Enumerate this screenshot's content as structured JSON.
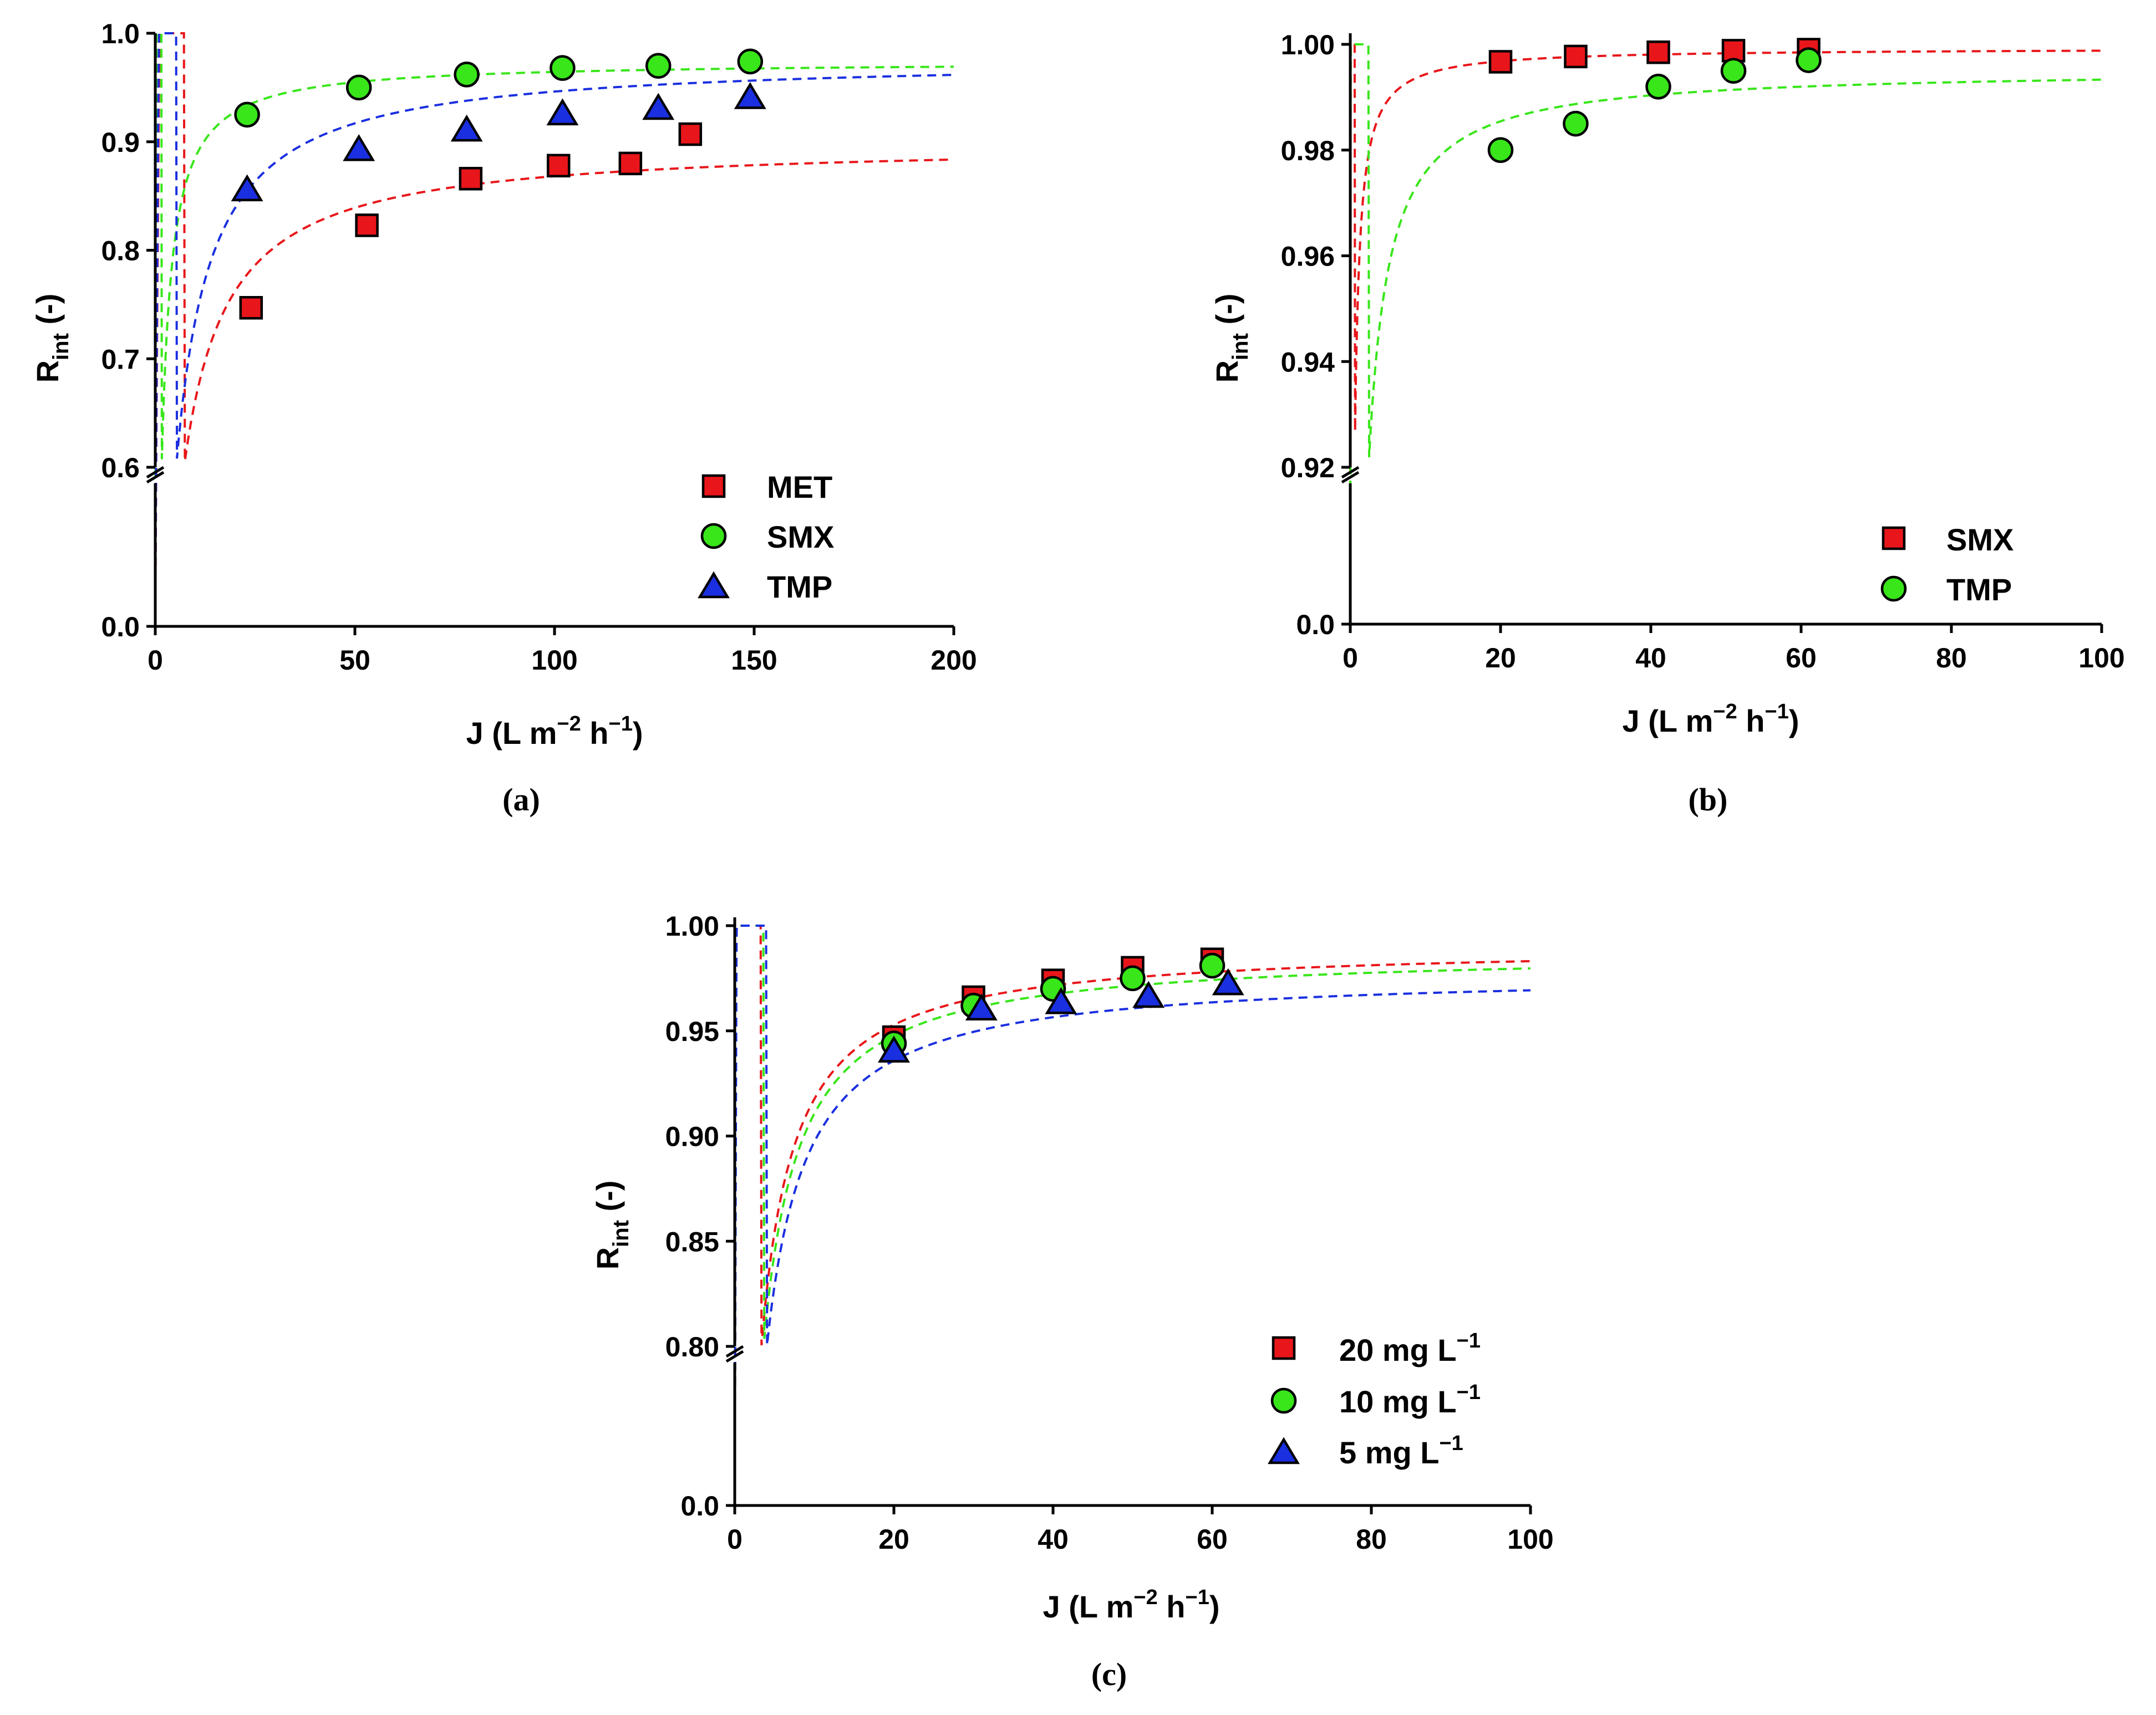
{
  "colors": {
    "red": "#e8161a",
    "green": "#38e61a",
    "blue": "#1a2fe0",
    "axis": "#000000"
  },
  "chart_data": [
    {
      "type": "scatter",
      "panel_label": "(a)",
      "xlabel": {
        "main": "J (L m",
        "sup1": "−2",
        "mid": " h",
        "sup2": "−1",
        "end": ")"
      },
      "ylabel": {
        "main": "R",
        "sub": "int",
        "end": " (-)"
      },
      "xlim": [
        0,
        200
      ],
      "ylim_lower": [
        0.0,
        0.05
      ],
      "ylim_upper": [
        0.6,
        1.0
      ],
      "axis_break_at": 0.6,
      "xticks": [
        0,
        50,
        100,
        150,
        200
      ],
      "xtick_labels": [
        "0",
        "50",
        "100",
        "150",
        "200"
      ],
      "yticks_lower": [
        0.0
      ],
      "yticks_lower_labels": [
        "0.0"
      ],
      "yticks_upper": [
        0.6,
        0.7,
        0.8,
        0.9,
        1.0
      ],
      "yticks_upper_labels": [
        "0.6",
        "0.7",
        "0.8",
        "0.9",
        "1.0"
      ],
      "legend_position": "lower-right",
      "series": [
        {
          "name": "MET",
          "marker": "square",
          "color": "#e8161a",
          "x": [
            24,
            53,
            79,
            101,
            119,
            134
          ],
          "y": [
            0.747,
            0.823,
            0.866,
            0.878,
            0.88,
            0.907
          ],
          "fit": {
            "rmax": 0.8995,
            "k": 3.6
          }
        },
        {
          "name": "SMX",
          "marker": "circle",
          "color": "#38e61a",
          "x": [
            23,
            51,
            78,
            102,
            126,
            149
          ],
          "y": [
            0.925,
            0.95,
            0.962,
            0.968,
            0.97,
            0.974
          ],
          "fit": {
            "rmax": 0.974,
            "k": 1.0
          }
        },
        {
          "name": "TMP",
          "marker": "triangle",
          "color": "#1a2fe0",
          "x": [
            23,
            51,
            78,
            102,
            126,
            149
          ],
          "y": [
            0.855,
            0.892,
            0.91,
            0.925,
            0.93,
            0.94
          ],
          "fit": {
            "rmax": 0.9775,
            "k": 3.3
          }
        }
      ]
    },
    {
      "type": "scatter",
      "panel_label": "(b)",
      "xlabel": {
        "main": "J (L m",
        "sup1": "−2",
        "mid": " h",
        "sup2": "−1",
        "end": ")"
      },
      "ylabel": {
        "main": "R",
        "sub": "int",
        "end": " (-)"
      },
      "xlim": [
        0,
        100
      ],
      "ylim_lower": [
        0.0,
        0.05
      ],
      "ylim_upper": [
        0.92,
        1.0
      ],
      "axis_break_at": 0.92,
      "xticks": [
        0,
        20,
        40,
        60,
        80,
        100
      ],
      "xtick_labels": [
        "0",
        "20",
        "40",
        "60",
        "80",
        "100"
      ],
      "yticks_lower": [
        0.0
      ],
      "yticks_lower_labels": [
        "0.0"
      ],
      "yticks_upper": [
        0.92,
        0.94,
        0.96,
        0.98,
        1.0
      ],
      "yticks_upper_labels": [
        "0.92",
        "0.94",
        "0.96",
        "0.98",
        "1.00"
      ],
      "legend_position": "lower-right",
      "series": [
        {
          "name": "SMX",
          "marker": "square",
          "color": "#e8161a",
          "x": [
            20,
            30,
            41,
            51,
            61
          ],
          "y": [
            0.9967,
            0.9977,
            0.9985,
            0.9988,
            0.999
          ],
          "fit": {
            "rmax": 0.9993,
            "k": 0.05
          }
        },
        {
          "name": "TMP",
          "marker": "circle",
          "color": "#38e61a",
          "x": [
            20,
            30,
            41,
            51,
            61
          ],
          "y": [
            0.98,
            0.985,
            0.992,
            0.995,
            0.997
          ],
          "fit": {
            "rmax": 0.9953,
            "k": 0.2
          }
        }
      ]
    },
    {
      "type": "scatter",
      "panel_label": "(c)",
      "xlabel": {
        "main": "J (L m",
        "sup1": "−2",
        "mid": " h",
        "sup2": "−1",
        "end": ")"
      },
      "ylabel": {
        "main": "R",
        "sub": "int",
        "end": " (-)"
      },
      "xlim": [
        0,
        100
      ],
      "ylim_lower": [
        0.0,
        0.05
      ],
      "ylim_upper": [
        0.8,
        1.0
      ],
      "axis_break_at": 0.8,
      "xticks": [
        0,
        20,
        40,
        60,
        80,
        100
      ],
      "xtick_labels": [
        "0",
        "20",
        "40",
        "60",
        "80",
        "100"
      ],
      "yticks_lower": [
        0.0
      ],
      "yticks_lower_labels": [
        "0.0"
      ],
      "yticks_upper": [
        0.8,
        0.85,
        0.9,
        0.95,
        1.0
      ],
      "yticks_upper_labels": [
        "0.80",
        "0.85",
        "0.90",
        "0.95",
        "1.00"
      ],
      "legend_position": "lower-right",
      "series": [
        {
          "name": "20 mg L",
          "name_sup": "−1",
          "marker": "square",
          "color": "#e8161a",
          "x": [
            20,
            30,
            40,
            50,
            60
          ],
          "y": [
            0.947,
            0.966,
            0.974,
            0.98,
            0.984
          ],
          "fit": {
            "rmax": 0.991,
            "k": 0.8
          }
        },
        {
          "name": "10 mg L",
          "name_sup": "−1",
          "marker": "circle",
          "color": "#38e61a",
          "x": [
            20,
            30,
            40,
            50,
            60
          ],
          "y": [
            0.944,
            0.962,
            0.97,
            0.975,
            0.981
          ],
          "fit": {
            "rmax": 0.988,
            "k": 0.85
          }
        },
        {
          "name": "5 mg L",
          "name_sup": "−1",
          "marker": "triangle",
          "color": "#1a2fe0",
          "x": [
            20,
            31,
            41,
            52,
            62
          ],
          "y": [
            0.94,
            0.96,
            0.963,
            0.966,
            0.972
          ],
          "fit": {
            "rmax": 0.978,
            "k": 0.9
          }
        }
      ]
    }
  ]
}
